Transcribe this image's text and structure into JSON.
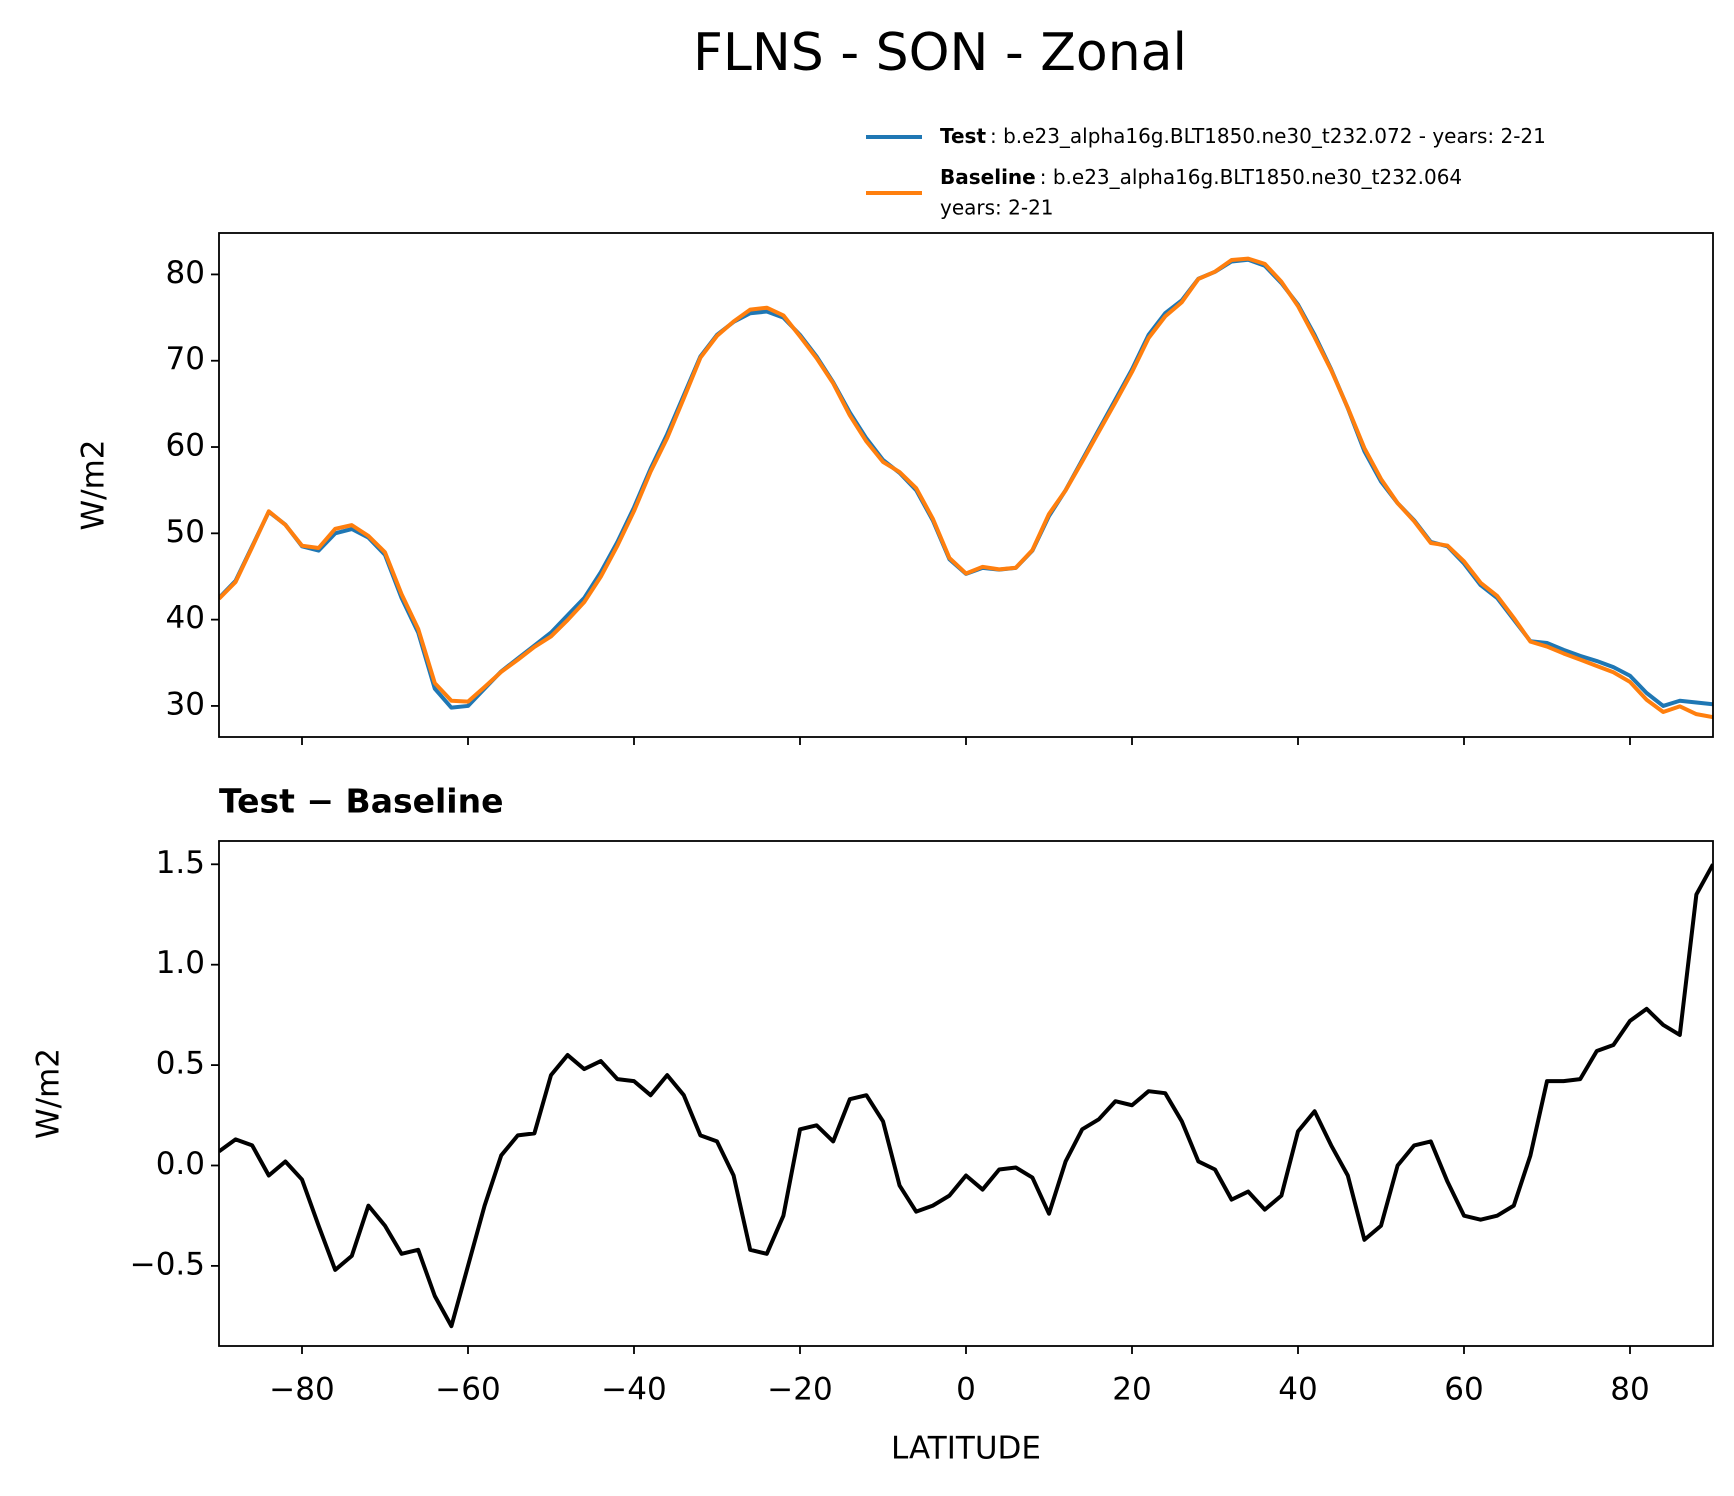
{
  "title": "FLNS - SON - Zonal",
  "chart_data": [
    {
      "type": "line",
      "x": [
        -90,
        -88,
        -86,
        -84,
        -82,
        -80,
        -78,
        -76,
        -74,
        -72,
        -70,
        -68,
        -66,
        -64,
        -62,
        -60,
        -58,
        -56,
        -54,
        -52,
        -50,
        -48,
        -46,
        -44,
        -42,
        -40,
        -38,
        -36,
        -34,
        -32,
        -30,
        -28,
        -26,
        -24,
        -22,
        -20,
        -18,
        -16,
        -14,
        -12,
        -10,
        -8,
        -6,
        -4,
        -2,
        0,
        2,
        4,
        6,
        8,
        10,
        12,
        14,
        16,
        18,
        20,
        22,
        24,
        26,
        28,
        30,
        32,
        34,
        36,
        38,
        40,
        42,
        44,
        46,
        48,
        50,
        52,
        54,
        56,
        58,
        60,
        62,
        64,
        66,
        68,
        70,
        72,
        74,
        76,
        78,
        80,
        82,
        84,
        86,
        88,
        90
      ],
      "series": [
        {
          "name": "Test",
          "description": [
            ": b.e23_alpha16g.BLT1850.ne30_t232.072 - years: 2-21"
          ],
          "color": "#1f77b4",
          "values": [
            42.5,
            44.5,
            48.5,
            52.5,
            51,
            48.5,
            48,
            50,
            50.5,
            49.5,
            47.5,
            42.5,
            38.5,
            32,
            29.8,
            30,
            32,
            34,
            35.5,
            37,
            38.5,
            40.5,
            42.5,
            45.5,
            49,
            53,
            57.5,
            61.5,
            66,
            70.5,
            73,
            74.5,
            75.5,
            75.7,
            75,
            73,
            70.5,
            67.5,
            64,
            61,
            58.5,
            57,
            55,
            51.5,
            47,
            45.3,
            46,
            45.8,
            46,
            48,
            52,
            55,
            58.5,
            62,
            65.5,
            69,
            73,
            75.5,
            77,
            79.5,
            80.3,
            81.5,
            81.7,
            81,
            79,
            76.5,
            73,
            69,
            64.5,
            59.5,
            56,
            53.5,
            51.5,
            49,
            48.5,
            46.5,
            44,
            42.5,
            40,
            37.5,
            37.3,
            36.5,
            35.8,
            35.2,
            34.5,
            33.5,
            31.5,
            30,
            30.6,
            30.4,
            30.2
          ]
        },
        {
          "name": "Baseline",
          "description": [
            ": b.e23_alpha16g.BLT1850.ne30_t232.064",
            "years: 2-21"
          ],
          "color": "#ff7f0e",
          "values": [
            42.43,
            44.37,
            48.4,
            52.55,
            50.98,
            48.57,
            48.3,
            50.52,
            50.95,
            49.7,
            47.8,
            42.94,
            38.92,
            32.65,
            30.6,
            30.5,
            32.2,
            33.95,
            35.35,
            36.84,
            38.05,
            39.95,
            42.02,
            44.98,
            48.57,
            52.58,
            57.15,
            61.05,
            65.65,
            70.35,
            72.88,
            74.55,
            75.92,
            76.14,
            75.25,
            72.82,
            70.3,
            67.38,
            63.67,
            60.65,
            58.28,
            57.1,
            55.23,
            51.7,
            47.15,
            45.35,
            46.12,
            45.82,
            46.01,
            48.06,
            52.24,
            54.98,
            58.32,
            61.77,
            65.18,
            68.7,
            72.63,
            75.14,
            76.78,
            79.48,
            80.32,
            81.67,
            81.83,
            81.22,
            79.15,
            76.33,
            72.73,
            68.9,
            64.55,
            59.87,
            56.3,
            53.5,
            51.4,
            48.88,
            48.58,
            46.75,
            44.27,
            42.75,
            40.2,
            37.45,
            36.88,
            36.08,
            35.37,
            34.63,
            33.9,
            32.78,
            30.72,
            29.3,
            29.95,
            29.05,
            28.7
          ]
        }
      ],
      "ylabel": "W/m2",
      "xlim": [
        -90,
        90
      ],
      "ylim": [
        26.4,
        84.8
      ],
      "xticks": [
        {
          "value": -80,
          "label": "−80"
        },
        {
          "value": -60,
          "label": "−60"
        },
        {
          "value": -40,
          "label": "−40"
        },
        {
          "value": -20,
          "label": "−20"
        },
        0,
        20,
        40,
        60,
        80
      ],
      "show_xtick_labels": false,
      "yticks": [
        30,
        40,
        50,
        60,
        70,
        80
      ],
      "grid": false,
      "legend": "upper right outside"
    },
    {
      "type": "line",
      "title": "Test − Baseline",
      "x": [
        -90,
        -88,
        -86,
        -84,
        -82,
        -80,
        -78,
        -76,
        -74,
        -72,
        -70,
        -68,
        -66,
        -64,
        -62,
        -60,
        -58,
        -56,
        -54,
        -52,
        -50,
        -48,
        -46,
        -44,
        -42,
        -40,
        -38,
        -36,
        -34,
        -32,
        -30,
        -28,
        -26,
        -24,
        -22,
        -20,
        -18,
        -16,
        -14,
        -12,
        -10,
        -8,
        -6,
        -4,
        -2,
        0,
        2,
        4,
        6,
        8,
        10,
        12,
        14,
        16,
        18,
        20,
        22,
        24,
        26,
        28,
        30,
        32,
        34,
        36,
        38,
        40,
        42,
        44,
        46,
        48,
        50,
        52,
        54,
        56,
        58,
        60,
        62,
        64,
        66,
        68,
        70,
        72,
        74,
        76,
        78,
        80,
        82,
        84,
        86,
        88,
        90
      ],
      "color": "#000000",
      "values": [
        0.07,
        0.13,
        0.1,
        -0.05,
        0.02,
        -0.07,
        -0.3,
        -0.52,
        -0.45,
        -0.2,
        -0.3,
        -0.44,
        -0.42,
        -0.65,
        -0.8,
        -0.5,
        -0.2,
        0.05,
        0.15,
        0.16,
        0.45,
        0.55,
        0.48,
        0.52,
        0.43,
        0.42,
        0.35,
        0.45,
        0.35,
        0.15,
        0.12,
        -0.05,
        -0.42,
        -0.44,
        -0.25,
        0.18,
        0.2,
        0.12,
        0.33,
        0.35,
        0.22,
        -0.1,
        -0.23,
        -0.2,
        -0.15,
        -0.05,
        -0.12,
        -0.02,
        -0.01,
        -0.06,
        -0.24,
        0.02,
        0.18,
        0.23,
        0.32,
        0.3,
        0.37,
        0.36,
        0.22,
        0.02,
        -0.02,
        -0.17,
        -0.13,
        -0.22,
        -0.15,
        0.17,
        0.27,
        0.1,
        -0.05,
        -0.37,
        -0.3,
        0.0,
        0.1,
        0.12,
        -0.08,
        -0.25,
        -0.27,
        -0.25,
        -0.2,
        0.05,
        0.42,
        0.42,
        0.43,
        0.57,
        0.6,
        0.72,
        0.78,
        0.7,
        0.65,
        1.35,
        1.5
      ],
      "ylabel": "W/m2",
      "xlabel": "LATITUDE",
      "xlim": [
        -90,
        90
      ],
      "ylim": [
        -0.899,
        1.616
      ],
      "xticks": [
        {
          "value": -80,
          "label": "−80"
        },
        {
          "value": -60,
          "label": "−60"
        },
        {
          "value": -40,
          "label": "−40"
        },
        {
          "value": -20,
          "label": "−20"
        },
        0,
        20,
        40,
        60,
        80
      ],
      "show_xtick_labels": true,
      "yticks": [
        {
          "value": -0.5,
          "label": "−0.5"
        },
        {
          "value": 0,
          "label": "0.0"
        },
        {
          "value": 0.5,
          "label": "0.5"
        },
        {
          "value": 1,
          "label": "1.0"
        },
        {
          "value": 1.5,
          "label": "1.5"
        }
      ],
      "grid": false
    }
  ]
}
